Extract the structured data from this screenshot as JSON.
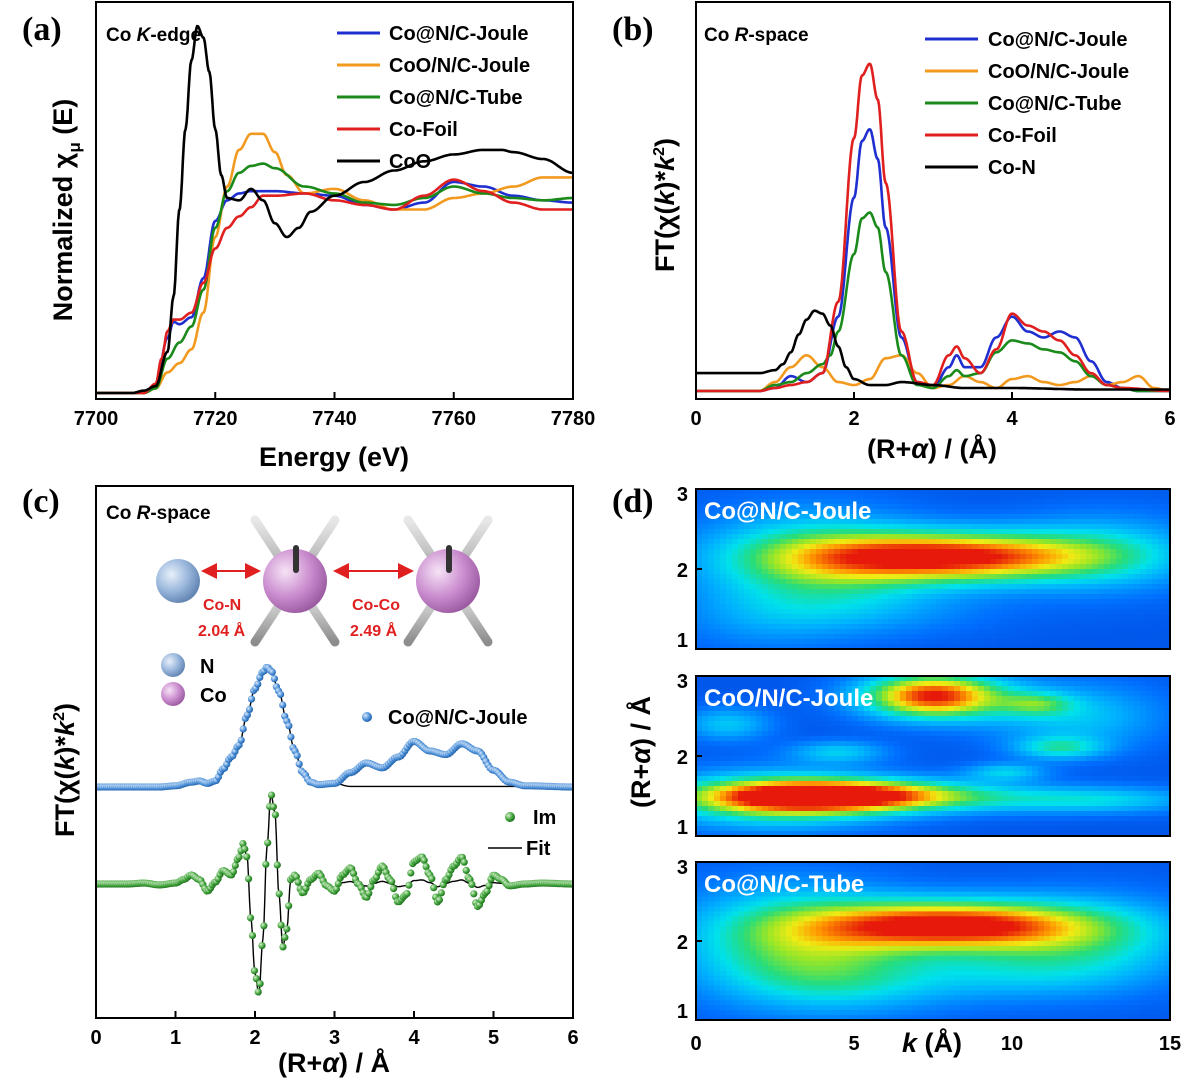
{
  "panel_labels": [
    "(a)",
    "(b)",
    "(c)",
    "(d)"
  ],
  "colors": {
    "joule": "#1f2fd0",
    "cooj": "#f29a1f",
    "tube": "#1a8a1a",
    "foil": "#e01f1f",
    "coo": "#000000"
  },
  "chart_data": [
    {
      "id": "a",
      "type": "line",
      "title_prefix": "Co ",
      "title_italic": "K",
      "title_suffix": "-edge",
      "xlabel": "Energy (eV)",
      "ylabel_prefix": "Normalized χ",
      "ylabel_sub": "μ",
      "ylabel_suffix": " (E)",
      "xlim": [
        7700,
        7780
      ],
      "ylim": [
        0,
        1.6
      ],
      "xticks": [
        7700,
        7720,
        7740,
        7760,
        7780
      ],
      "series": [
        {
          "name": "Co@N/C-Joule",
          "color": "#1f2fd0",
          "x": [
            7700,
            7708,
            7710,
            7712,
            7713,
            7714,
            7716,
            7718,
            7720,
            7722,
            7724,
            7726,
            7728,
            7730,
            7735,
            7740,
            7745,
            7750,
            7755,
            7760,
            7765,
            7770,
            7775,
            7780
          ],
          "y": [
            0,
            0,
            0.03,
            0.24,
            0.31,
            0.3,
            0.33,
            0.5,
            0.75,
            0.84,
            0.87,
            0.88,
            0.88,
            0.88,
            0.87,
            0.86,
            0.82,
            0.8,
            0.83,
            0.92,
            0.9,
            0.86,
            0.84,
            0.83
          ]
        },
        {
          "name": "CoO/N/C-Joule",
          "color": "#f29a1f",
          "x": [
            7700,
            7708,
            7710,
            7712,
            7714,
            7716,
            7718,
            7720,
            7722,
            7724,
            7726,
            7728,
            7730,
            7732,
            7735,
            7740,
            7745,
            7750,
            7755,
            7760,
            7765,
            7770,
            7775,
            7780
          ],
          "y": [
            0,
            0,
            0.02,
            0.09,
            0.13,
            0.19,
            0.35,
            0.68,
            0.9,
            1.06,
            1.13,
            1.13,
            1.05,
            0.95,
            0.87,
            0.89,
            0.84,
            0.8,
            0.8,
            0.85,
            0.87,
            0.9,
            0.94,
            0.94
          ]
        },
        {
          "name": "Co@N/C-Tube",
          "color": "#1a8a1a",
          "x": [
            7700,
            7708,
            7710,
            7712,
            7714,
            7716,
            7718,
            7720,
            7722,
            7724,
            7726,
            7728,
            7730,
            7735,
            7740,
            7745,
            7750,
            7755,
            7760,
            7765,
            7770,
            7775,
            7780
          ],
          "y": [
            0,
            0,
            0.02,
            0.15,
            0.22,
            0.29,
            0.45,
            0.72,
            0.88,
            0.96,
            0.99,
            1.0,
            0.98,
            0.9,
            0.87,
            0.83,
            0.82,
            0.85,
            0.9,
            0.87,
            0.85,
            0.84,
            0.85
          ]
        },
        {
          "name": "Co-Foil",
          "color": "#e01f1f",
          "x": [
            7700,
            7708,
            7710,
            7711,
            7712,
            7713,
            7714,
            7716,
            7718,
            7720,
            7722,
            7724,
            7726,
            7728,
            7730,
            7735,
            7740,
            7745,
            7750,
            7755,
            7760,
            7765,
            7770,
            7775,
            7780
          ],
          "y": [
            0,
            0,
            0.04,
            0.15,
            0.27,
            0.32,
            0.32,
            0.35,
            0.48,
            0.63,
            0.72,
            0.77,
            0.81,
            0.86,
            0.86,
            0.87,
            0.84,
            0.82,
            0.8,
            0.86,
            0.93,
            0.88,
            0.83,
            0.8,
            0.8
          ]
        },
        {
          "name": "CoO",
          "color": "#000000",
          "x": [
            7700,
            7706,
            7708,
            7710,
            7712,
            7713,
            7714,
            7715,
            7716,
            7717,
            7718,
            7719,
            7720,
            7721,
            7722,
            7724,
            7726,
            7728,
            7730,
            7732,
            7734,
            7736,
            7740,
            7745,
            7750,
            7755,
            7760,
            7765,
            7768,
            7770,
            7775,
            7780
          ],
          "y": [
            0,
            0,
            0.01,
            0.03,
            0.18,
            0.42,
            0.8,
            1.15,
            1.45,
            1.6,
            1.55,
            1.4,
            1.15,
            0.95,
            0.85,
            0.84,
            0.89,
            0.84,
            0.74,
            0.68,
            0.72,
            0.79,
            0.86,
            0.92,
            0.97,
            1.01,
            1.04,
            1.06,
            1.06,
            1.05,
            1.02,
            0.96
          ]
        }
      ]
    },
    {
      "id": "b",
      "type": "line",
      "title_prefix": "Co ",
      "title_italic": "R",
      "title_suffix": "-space",
      "xlabel_pre": "(R+",
      "xlabel_it": "α",
      "xlabel_post": ") / (Å)",
      "ylabel_pre": "FT(χ(",
      "ylabel_k1": "k",
      "ylabel_mid": ")*",
      "ylabel_k2": "k",
      "ylabel_sup": "2",
      "ylabel_post": ")",
      "xlim": [
        0,
        6
      ],
      "ylim": [
        0,
        1.2
      ],
      "xticks": [
        0,
        2,
        4,
        6
      ],
      "series": [
        {
          "name": "Co@N/C-Joule",
          "color": "#1f2fd0",
          "x": [
            0,
            0.8,
            1.0,
            1.2,
            1.4,
            1.6,
            1.8,
            2.0,
            2.1,
            2.2,
            2.3,
            2.4,
            2.6,
            2.8,
            3.0,
            3.2,
            3.3,
            3.4,
            3.6,
            3.8,
            4.0,
            4.2,
            4.4,
            4.6,
            4.8,
            5.0,
            5.2,
            5.4,
            5.6,
            6.0
          ],
          "y": [
            0,
            0,
            0.01,
            0.05,
            0.03,
            0.06,
            0.25,
            0.65,
            0.84,
            0.88,
            0.78,
            0.55,
            0.18,
            0.03,
            0.01,
            0.08,
            0.12,
            0.08,
            0.08,
            0.18,
            0.25,
            0.2,
            0.18,
            0.2,
            0.18,
            0.1,
            0.03,
            0.01,
            0,
            0
          ]
        },
        {
          "name": "CoO/N/C-Joule",
          "color": "#f29a1f",
          "x": [
            0,
            0.8,
            1.0,
            1.2,
            1.4,
            1.6,
            1.8,
            2.0,
            2.2,
            2.4,
            2.6,
            2.8,
            3.0,
            3.2,
            3.4,
            3.6,
            3.8,
            4.0,
            4.2,
            4.4,
            4.6,
            4.8,
            5.0,
            5.2,
            5.4,
            5.6,
            5.8,
            6.0
          ],
          "y": [
            0,
            0,
            0.03,
            0.08,
            0.12,
            0.08,
            0.03,
            0.02,
            0.04,
            0.11,
            0.12,
            0.06,
            0.01,
            0.02,
            0.05,
            0.03,
            0.01,
            0.04,
            0.05,
            0.03,
            0.02,
            0.03,
            0.05,
            0.02,
            0.03,
            0.05,
            0.01,
            0
          ]
        },
        {
          "name": "Co@N/C-Tube",
          "color": "#1a8a1a",
          "x": [
            0,
            0.8,
            1.0,
            1.2,
            1.4,
            1.6,
            1.7,
            1.8,
            2.0,
            2.1,
            2.2,
            2.3,
            2.4,
            2.6,
            2.8,
            3.0,
            3.2,
            3.3,
            3.4,
            3.6,
            3.8,
            4.0,
            4.2,
            4.4,
            4.6,
            4.8,
            5.0,
            5.2,
            5.4,
            5.6,
            6.0
          ],
          "y": [
            0,
            0,
            0.02,
            0.03,
            0.06,
            0.09,
            0.12,
            0.2,
            0.46,
            0.58,
            0.6,
            0.55,
            0.4,
            0.12,
            0.02,
            0.01,
            0.05,
            0.07,
            0.05,
            0.06,
            0.13,
            0.17,
            0.16,
            0.14,
            0.13,
            0.1,
            0.05,
            0.02,
            0.01,
            0,
            0
          ]
        },
        {
          "name": "Co-Foil",
          "color": "#e01f1f",
          "x": [
            0,
            0.8,
            1.0,
            1.2,
            1.4,
            1.6,
            1.8,
            2.0,
            2.1,
            2.2,
            2.3,
            2.4,
            2.6,
            2.8,
            3.0,
            3.2,
            3.3,
            3.4,
            3.6,
            3.8,
            4.0,
            4.2,
            4.4,
            4.6,
            4.8,
            5.0,
            5.2,
            5.4,
            6.0
          ],
          "y": [
            0,
            0,
            0.01,
            0.02,
            0.03,
            0.06,
            0.3,
            0.85,
            1.06,
            1.1,
            0.98,
            0.7,
            0.2,
            0.03,
            0.02,
            0.12,
            0.15,
            0.11,
            0.06,
            0.14,
            0.26,
            0.22,
            0.2,
            0.17,
            0.12,
            0.06,
            0.02,
            0.01,
            0
          ]
        },
        {
          "name": "Co-N",
          "color": "#000000",
          "x": [
            0,
            0.4,
            0.8,
            1.0,
            1.1,
            1.2,
            1.3,
            1.4,
            1.5,
            1.6,
            1.7,
            1.8,
            1.9,
            2.0,
            2.2,
            2.4,
            2.6,
            3.0,
            3.4,
            4.0,
            5.0,
            6.0
          ],
          "y": [
            0.06,
            0.06,
            0.06,
            0.07,
            0.09,
            0.13,
            0.19,
            0.24,
            0.27,
            0.26,
            0.22,
            0.15,
            0.08,
            0.04,
            0.02,
            0.02,
            0.03,
            0.02,
            0.01,
            0.01,
            0.005,
            0.005
          ]
        }
      ]
    },
    {
      "id": "c",
      "type": "line+scatter",
      "title_prefix": "Co ",
      "title_italic": "R",
      "title_suffix": "-space",
      "xlabel_pre": "(R+",
      "xlabel_it": "α",
      "xlabel_post": ") / Å",
      "ylabel_pre": "FT(χ(",
      "ylabel_k1": "k",
      "ylabel_mid": ")*",
      "ylabel_k2": "k",
      "ylabel_sup": "2",
      "ylabel_post": ")",
      "xlim": [
        0,
        6
      ],
      "xticks": [
        0,
        1,
        2,
        3,
        4,
        5,
        6
      ],
      "legend": {
        "data": "Co@N/C-Joule",
        "im": "Im",
        "fit": "Fit"
      },
      "structure": {
        "atom_n": "N",
        "atom_co": "Co",
        "bond1_name": "Co-N",
        "bond1_length": "2.04 Å",
        "bond2_name": "Co-Co",
        "bond2_length": "2.49 Å"
      },
      "magnitude": {
        "x": [
          0,
          0.8,
          1.0,
          1.2,
          1.3,
          1.4,
          1.5,
          1.6,
          1.7,
          1.8,
          1.9,
          2.0,
          2.1,
          2.15,
          2.2,
          2.3,
          2.4,
          2.5,
          2.6,
          2.7,
          2.8,
          3.0,
          3.2,
          3.4,
          3.6,
          3.8,
          4.0,
          4.2,
          4.4,
          4.6,
          4.8,
          5.0,
          5.2,
          5.4,
          6.0
        ],
        "y": [
          0,
          0,
          0.01,
          0.04,
          0.05,
          0.03,
          0.05,
          0.15,
          0.25,
          0.35,
          0.6,
          0.82,
          0.96,
          1.0,
          0.97,
          0.8,
          0.55,
          0.3,
          0.12,
          0.04,
          0.02,
          0.03,
          0.12,
          0.2,
          0.16,
          0.25,
          0.38,
          0.3,
          0.27,
          0.36,
          0.3,
          0.14,
          0.04,
          0.01,
          0
        ]
      },
      "fit_range": [
        1.0,
        3.0
      ],
      "imaginary": {
        "x": [
          0,
          0.4,
          0.6,
          0.8,
          1.0,
          1.1,
          1.2,
          1.3,
          1.4,
          1.5,
          1.6,
          1.7,
          1.8,
          1.85,
          1.9,
          1.95,
          2.0,
          2.05,
          2.1,
          2.15,
          2.2,
          2.25,
          2.3,
          2.35,
          2.4,
          2.45,
          2.5,
          2.6,
          2.7,
          2.8,
          2.9,
          3.0,
          3.1,
          3.2,
          3.3,
          3.4,
          3.5,
          3.6,
          3.7,
          3.8,
          3.9,
          4.0,
          4.1,
          4.2,
          4.3,
          4.4,
          4.5,
          4.6,
          4.7,
          4.8,
          4.9,
          5.0,
          5.1,
          5.2,
          5.4,
          5.6,
          6.0
        ],
        "y": [
          0,
          0,
          0.01,
          -0.01,
          0.01,
          0.05,
          0.1,
          0.05,
          -0.08,
          0.02,
          0.15,
          0.1,
          0.3,
          0.45,
          0.3,
          -0.4,
          -1.0,
          -1.22,
          -0.6,
          0.4,
          1.0,
          0.8,
          -0.1,
          -0.7,
          -0.5,
          0.05,
          0.1,
          -0.1,
          0.05,
          0.12,
          -0.02,
          -0.08,
          0.1,
          0.18,
          0.0,
          -0.15,
          0.05,
          0.2,
          0.05,
          -0.2,
          -0.12,
          0.25,
          0.3,
          0.1,
          -0.2,
          0.05,
          0.2,
          0.3,
          0.05,
          -0.25,
          -0.1,
          0.1,
          0.05,
          -0.02,
          0,
          0.01,
          0
        ]
      }
    },
    {
      "id": "d",
      "type": "heatmap",
      "xlabel_it": "k",
      "xlabel_post": " (Å)",
      "ylabel_pre": "(R+",
      "ylabel_it": "α",
      "ylabel_post": ") / Å",
      "xlim": [
        0,
        15
      ],
      "ylim": [
        1,
        3
      ],
      "xticks": [
        0,
        5,
        10,
        15
      ],
      "yticks": [
        1,
        2,
        3
      ],
      "maps": [
        {
          "label": "Co@N/C-Joule",
          "blobs": [
            [
              8.0,
              2.15,
              3.2,
              0.22,
              1.0
            ],
            [
              3.5,
              2.1,
              2.5,
              0.45,
              0.45
            ],
            [
              13.0,
              2.2,
              2.2,
              0.35,
              0.3
            ],
            [
              5.5,
              1.5,
              3.0,
              0.25,
              0.15
            ],
            [
              2.0,
              1.3,
              2.0,
              0.3,
              0.1
            ]
          ]
        },
        {
          "label": "CoO/N/C-Joule",
          "blobs": [
            [
              4.8,
              1.5,
              3.0,
              0.14,
              1.0
            ],
            [
              7.5,
              2.75,
              1.6,
              0.2,
              1.0
            ],
            [
              2.5,
              1.45,
              2.5,
              0.25,
              0.55
            ],
            [
              10.8,
              2.65,
              0.8,
              0.1,
              0.3
            ],
            [
              4.5,
              2.05,
              1.1,
              0.1,
              0.3
            ],
            [
              9.8,
              1.8,
              0.9,
              0.08,
              0.3
            ],
            [
              11.5,
              2.1,
              1.0,
              0.1,
              0.35
            ],
            [
              12.5,
              1.45,
              2.5,
              0.12,
              0.35
            ],
            [
              1.0,
              2.4,
              1.0,
              0.15,
              0.3
            ],
            [
              12.0,
              2.5,
              2.0,
              0.3,
              0.3
            ]
          ]
        },
        {
          "label": "Co@N/C-Tube",
          "blobs": [
            [
              8.0,
              2.2,
              3.0,
              0.22,
              1.0
            ],
            [
              3.0,
              2.0,
              2.5,
              0.5,
              0.5
            ],
            [
              12.5,
              2.0,
              2.5,
              0.4,
              0.35
            ],
            [
              5.0,
              1.5,
              2.5,
              0.3,
              0.25
            ],
            [
              10.0,
              1.6,
              2.5,
              0.25,
              0.2
            ]
          ]
        }
      ]
    }
  ]
}
